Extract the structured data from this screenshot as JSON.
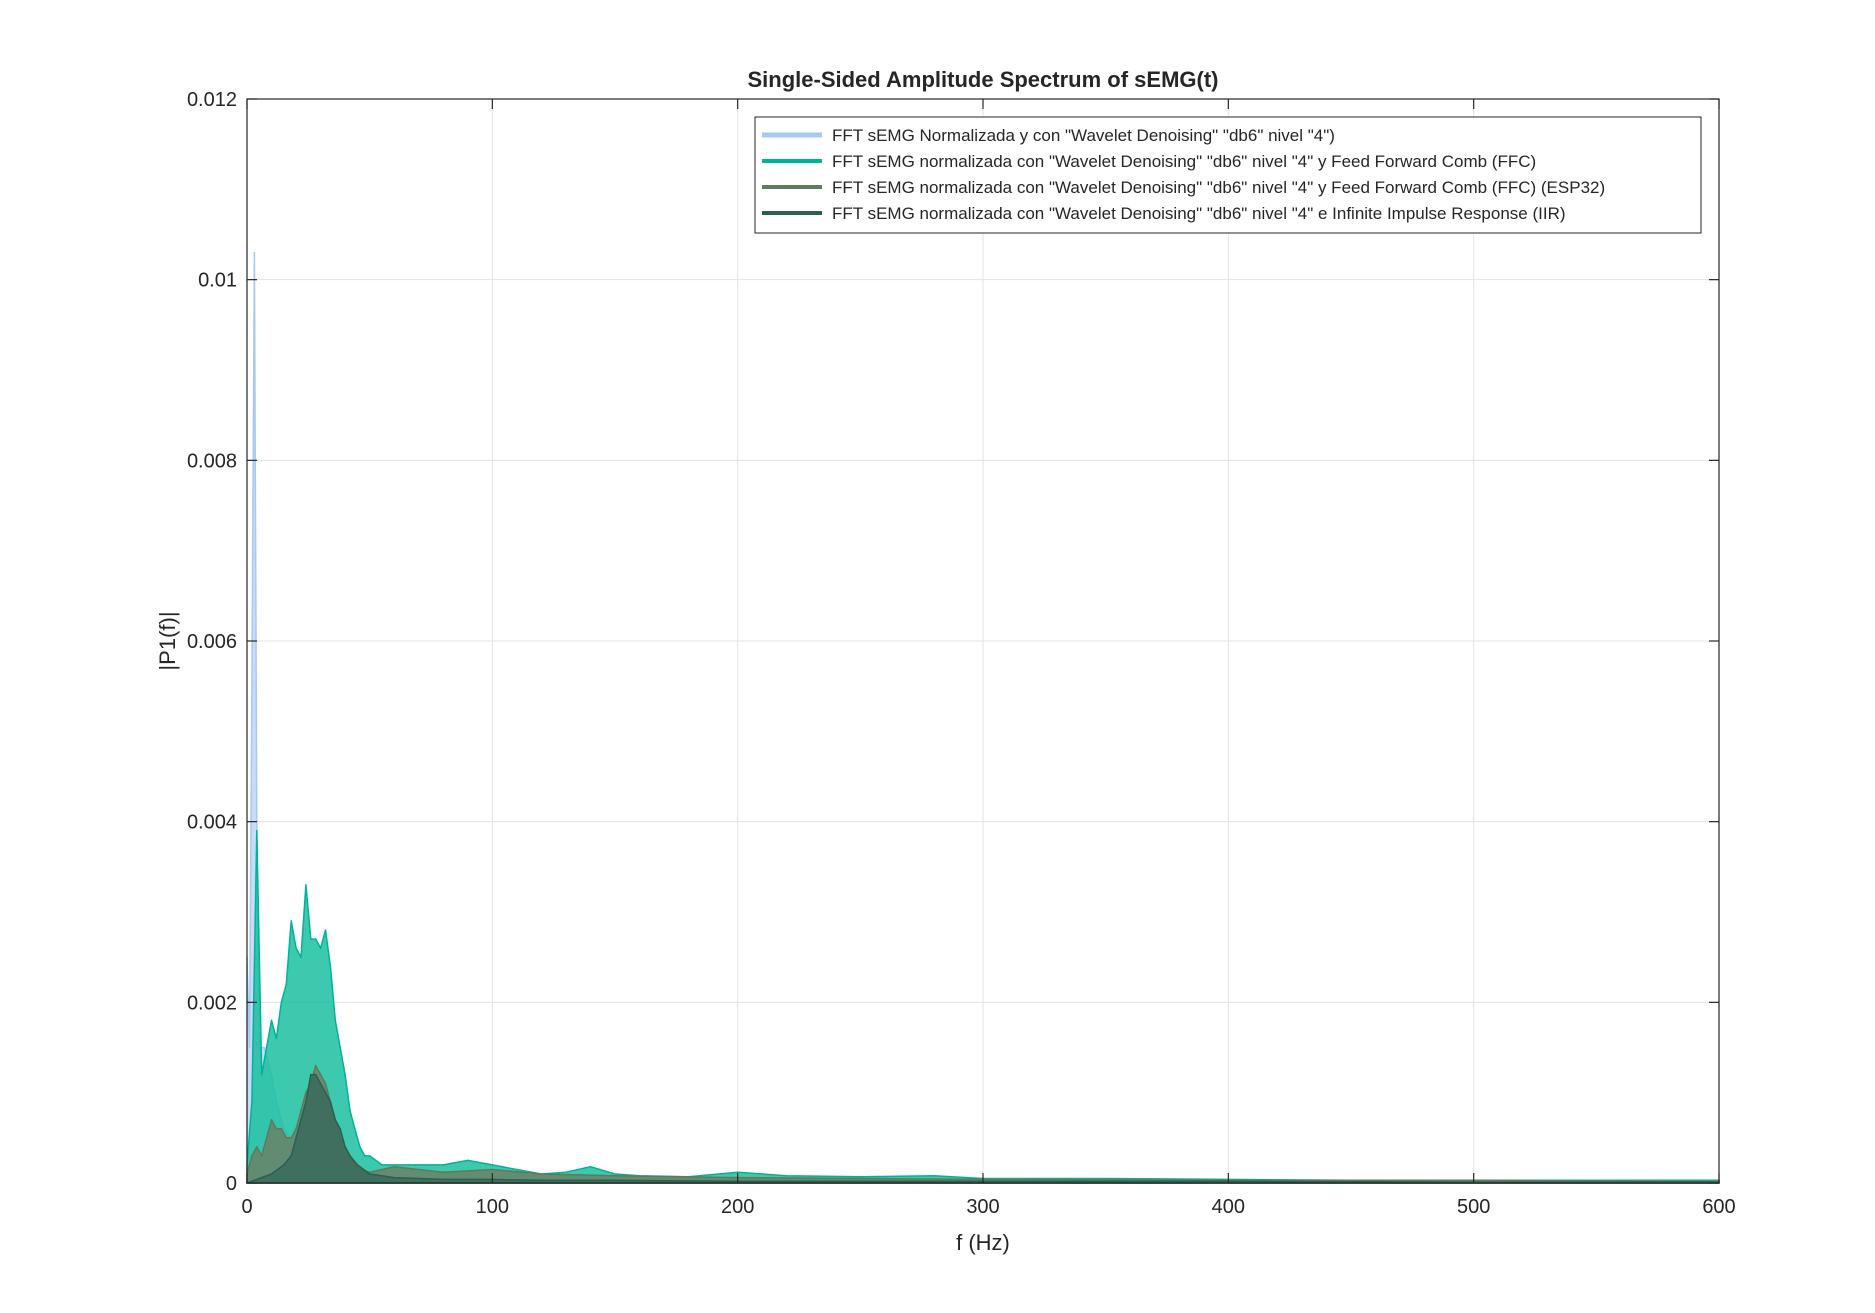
{
  "chart_data": {
    "type": "area",
    "title": "Single-Sided Amplitude Spectrum of sEMG(t)",
    "xlabel": "f (Hz)",
    "ylabel": "|P1(f)|",
    "xlim": [
      0,
      600
    ],
    "ylim": [
      0,
      0.012
    ],
    "x_ticks": [
      0,
      100,
      200,
      300,
      400,
      500,
      600
    ],
    "x_tick_labels": [
      "0",
      "100",
      "200",
      "300",
      "400",
      "500",
      "600"
    ],
    "y_ticks": [
      0,
      0.002,
      0.004,
      0.006,
      0.008,
      0.01,
      0.012
    ],
    "y_tick_labels": [
      "0",
      "0.002",
      "0.004",
      "0.006",
      "0.008",
      "0.01",
      "0.012"
    ],
    "grid": true,
    "legend_position": "top-right",
    "series": [
      {
        "name": "FFT sEMG Normalizada y con \"Wavelet Denoising\" \"db6\" nivel \"4\")",
        "color": "#a7c8f5",
        "fill": "#c6daf7",
        "x": [
          0,
          1,
          2,
          3,
          4,
          5,
          6,
          7,
          8,
          10,
          12,
          15,
          20,
          30,
          40,
          50,
          60
        ],
        "y": [
          0.0025,
          0.0015,
          0.0055,
          0.0103,
          0.004,
          0.0015,
          0.0015,
          0.0015,
          0.0014,
          0.0012,
          0.0009,
          0.0006,
          0.0004,
          0.0003,
          0.0002,
          0.0001,
          0.0
        ]
      },
      {
        "name": "FFT sEMG normalizada con \"Wavelet Denoising\" \"db6\" nivel \"4\" y Feed Forward Comb (FFC)",
        "color": "#00b398",
        "fill": "#1abf9f",
        "x": [
          0,
          2,
          4,
          6,
          8,
          10,
          12,
          14,
          16,
          18,
          20,
          22,
          24,
          26,
          28,
          30,
          32,
          34,
          36,
          38,
          40,
          42,
          44,
          46,
          48,
          50,
          55,
          60,
          70,
          80,
          90,
          100,
          110,
          120,
          130,
          140,
          150,
          160,
          180,
          200,
          220,
          250,
          280,
          300,
          350,
          400,
          450,
          500,
          550,
          600
        ],
        "y": [
          0.0002,
          0.0009,
          0.0039,
          0.0012,
          0.0015,
          0.0018,
          0.0016,
          0.002,
          0.0022,
          0.0029,
          0.0026,
          0.0025,
          0.0033,
          0.0027,
          0.0027,
          0.0026,
          0.0028,
          0.0024,
          0.0018,
          0.0015,
          0.0012,
          0.0008,
          0.0006,
          0.0004,
          0.0003,
          0.0003,
          0.0002,
          0.0002,
          0.0002,
          0.0002,
          0.00025,
          0.0002,
          0.00015,
          0.0001,
          0.00012,
          0.00018,
          0.0001,
          8e-05,
          7e-05,
          0.00012,
          8e-05,
          7e-05,
          8e-05,
          5e-05,
          5e-05,
          4e-05,
          3e-05,
          3e-05,
          3e-05,
          3e-05
        ]
      },
      {
        "name": "FFT sEMG normalizada con \"Wavelet Denoising\" \"db6\" nivel \"4\" y Feed Forward Comb (FFC) (ESP32)",
        "color": "#5e7a60",
        "fill": "#6a8266",
        "x": [
          0,
          2,
          4,
          6,
          8,
          10,
          12,
          14,
          16,
          18,
          20,
          22,
          24,
          26,
          28,
          30,
          32,
          34,
          36,
          38,
          40,
          42,
          44,
          46,
          50,
          55,
          60,
          70,
          80,
          100,
          120,
          150,
          200,
          250,
          300,
          400,
          500,
          600
        ],
        "y": [
          0.0001,
          0.0003,
          0.0004,
          0.0003,
          0.0005,
          0.0007,
          0.0006,
          0.0006,
          0.0005,
          0.0005,
          0.0006,
          0.0008,
          0.001,
          0.0011,
          0.0013,
          0.0012,
          0.0011,
          0.0009,
          0.0007,
          0.0005,
          0.0004,
          0.0003,
          0.0002,
          0.00015,
          0.00012,
          0.00015,
          0.00018,
          0.00015,
          0.00012,
          0.00015,
          0.0001,
          8e-05,
          6e-05,
          5e-05,
          4e-05,
          3e-05,
          3e-05,
          2e-05
        ]
      },
      {
        "name": "FFT sEMG normalizada con \"Wavelet Denoising\" \"db6\" nivel \"4\" e Infinite Impulse Response (IIR)",
        "color": "#2f5e50",
        "fill": "#3a6a5c",
        "x": [
          0,
          5,
          10,
          15,
          18,
          20,
          22,
          24,
          26,
          28,
          30,
          32,
          34,
          36,
          38,
          40,
          42,
          45,
          50,
          55,
          60,
          70,
          80,
          100,
          120,
          150,
          200,
          300,
          400,
          500,
          600
        ],
        "y": [
          0.0,
          5e-05,
          0.0001,
          0.0002,
          0.0003,
          0.0005,
          0.0007,
          0.0009,
          0.0012,
          0.0012,
          0.0011,
          0.001,
          0.0009,
          0.0007,
          0.0006,
          0.0004,
          0.0003,
          0.0002,
          0.0001,
          8e-05,
          6e-05,
          5e-05,
          4e-05,
          4e-05,
          3e-05,
          3e-05,
          2e-05,
          2e-05,
          2e-05,
          1e-05,
          1e-05
        ]
      }
    ]
  }
}
